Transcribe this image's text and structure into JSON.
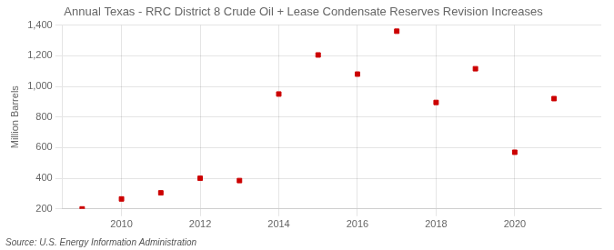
{
  "chart_data": {
    "type": "scatter",
    "title": "Annual Texas - RRC District 8 Crude Oil + Lease Condensate Reserves Revision Increases",
    "ylabel": "Million Barrels",
    "annotations": [
      "Source: U.S. Energy Information Administration"
    ],
    "x": [
      2009,
      2010,
      2011,
      2012,
      2013,
      2014,
      2015,
      2016,
      2017,
      2018,
      2019,
      2020,
      2021
    ],
    "values": [
      200,
      265,
      305,
      400,
      385,
      950,
      1205,
      1080,
      1360,
      895,
      1115,
      570,
      920
    ],
    "color": "#cc0000",
    "marker": "square",
    "xlim": [
      2008.5,
      2022.2
    ],
    "xticks": [
      2010,
      2012,
      2014,
      2016,
      2018,
      2020
    ],
    "ylim": [
      200,
      1400
    ],
    "yticks": [
      200,
      400,
      600,
      800,
      {
        "value": 1000,
        "label": "1,000"
      },
      {
        "value": 1200,
        "label": "1,200"
      },
      {
        "value": 1400,
        "label": "1,400"
      }
    ],
    "grid": true
  }
}
